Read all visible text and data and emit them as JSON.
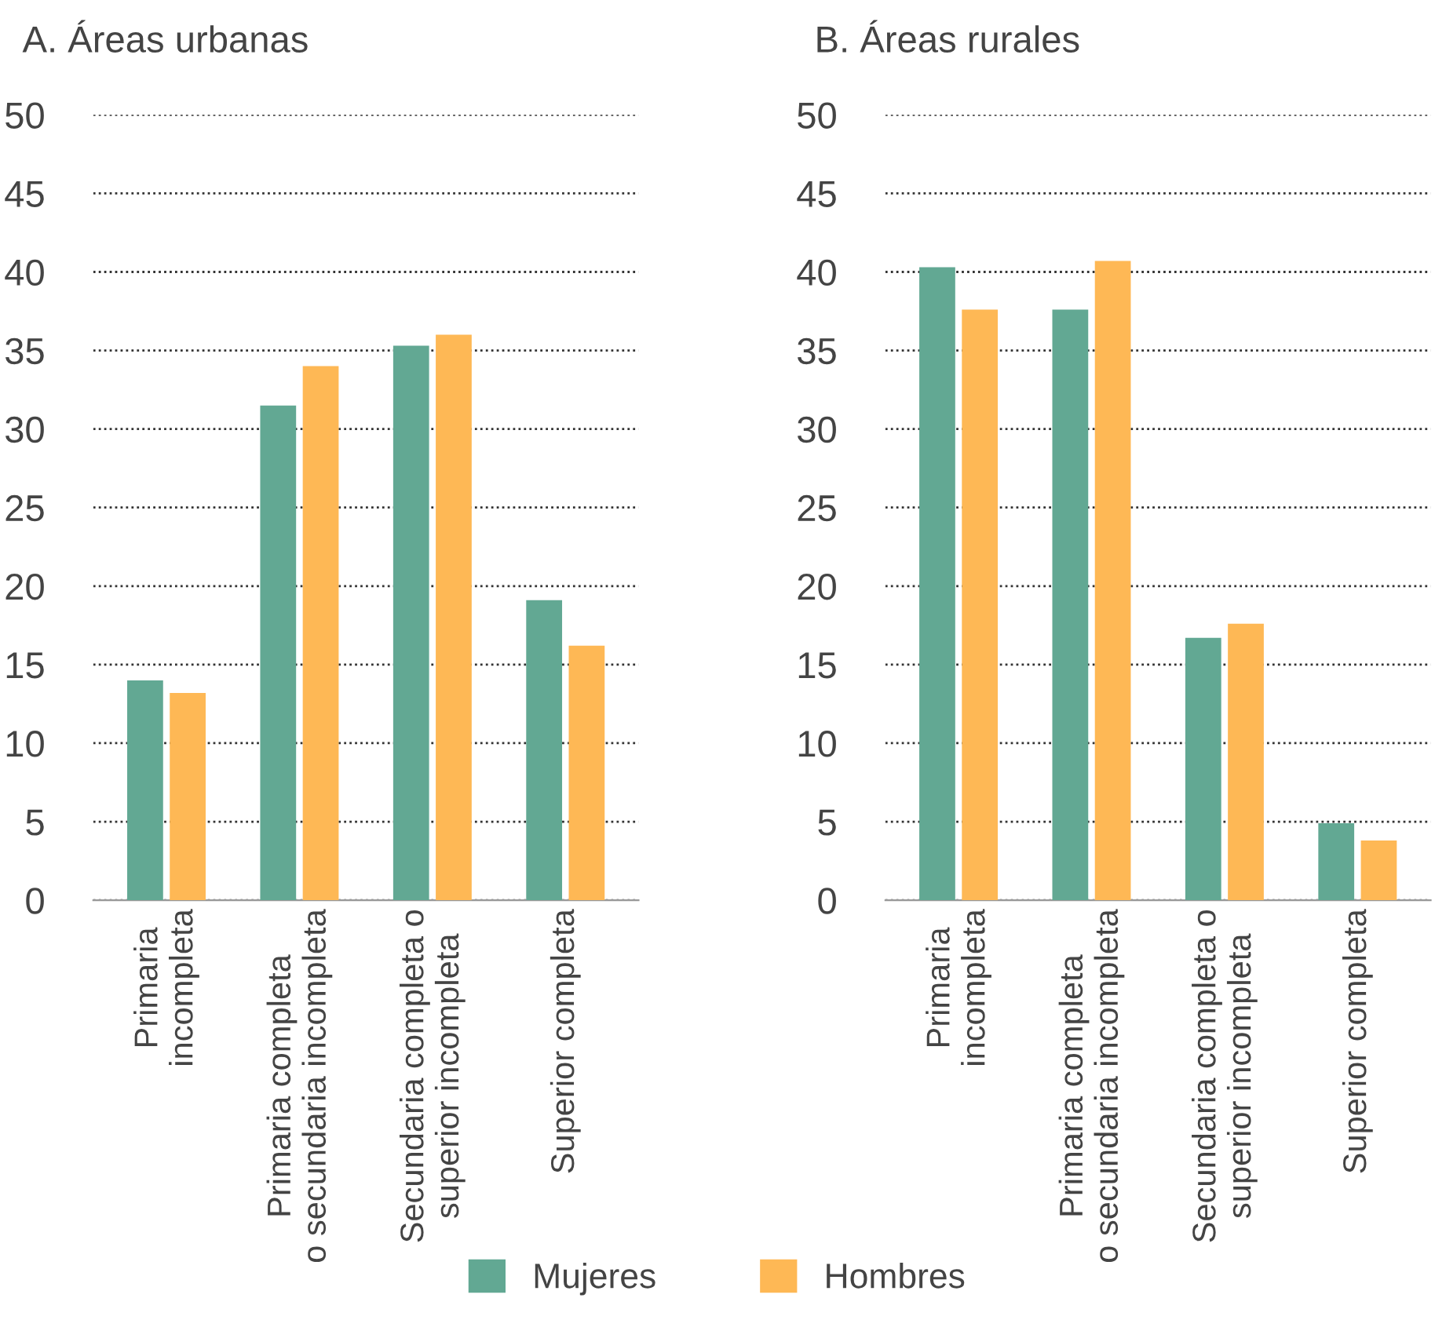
{
  "chart_data": [
    {
      "type": "bar",
      "title": "A. Áreas urbanas",
      "categories": [
        "Primaria\nincompleta",
        "Primaria completa\no secundaria incompleta",
        "Secundaria completa o\nsuperior incompleta",
        "Superior completa"
      ],
      "series": [
        {
          "color": "#62a893",
          "values": [
            14.0,
            31.5,
            35.3,
            19.1
          ]
        },
        {
          "color": "#feb855",
          "values": [
            13.2,
            34.0,
            36.0,
            16.2
          ]
        }
      ],
      "ylim": [
        0,
        50
      ],
      "yticks": [
        0,
        5,
        10,
        15,
        20,
        25,
        30,
        35,
        40,
        45,
        50
      ],
      "grid": "y",
      "legend": "bottom"
    },
    {
      "type": "bar",
      "title": "B. Áreas rurales",
      "categories": [
        "Primaria\nincompleta",
        "Primaria completa\no secundaria incompleta",
        "Secundaria completa o\nsuperior incompleta",
        "Superior completa"
      ],
      "series": [
        {
          "name": "Mujeres",
          "color": "#62a893",
          "values": [
            40.3,
            37.6,
            16.7,
            4.9
          ]
        },
        {
          "name": "Hombres",
          "color": "#feb855",
          "values": [
            37.6,
            40.7,
            17.6,
            3.8
          ]
        }
      ],
      "ylim": [
        0,
        50
      ],
      "yticks": [
        0,
        5,
        10,
        15,
        20,
        25,
        30,
        35,
        40,
        45,
        50
      ],
      "grid": "y",
      "legend": "bottom"
    }
  ]
}
